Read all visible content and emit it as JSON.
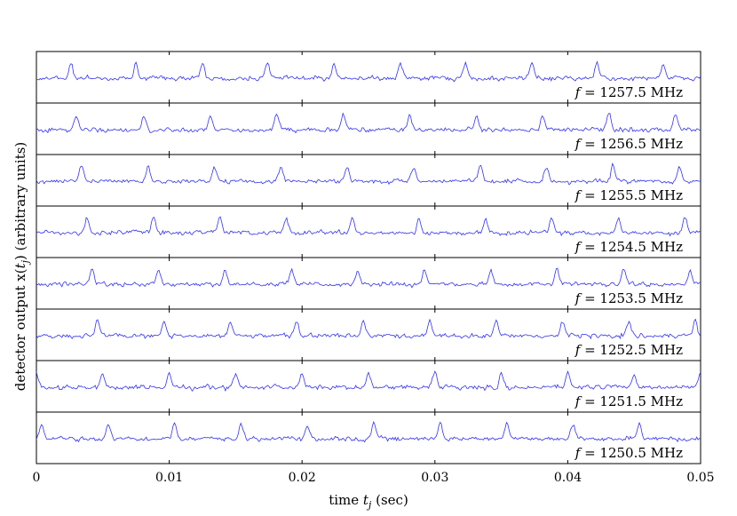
{
  "chart_data": {
    "type": "line",
    "xlabel": "time t_j (sec)",
    "ylabel": "detector output x(t_j) (arbitrary units)",
    "xlim": [
      0,
      0.05
    ],
    "xticks": [
      0,
      0.01,
      0.02,
      0.03,
      0.04,
      0.05
    ],
    "xtick_labels": [
      "0",
      "0.01",
      "0.02",
      "0.03",
      "0.04",
      "0.05"
    ],
    "grid": false,
    "line_color": "#3333ee",
    "panels": [
      {
        "label": "f = 1257.5 MHz",
        "peak_times": [
          0.0026,
          0.0075,
          0.0125,
          0.0174,
          0.0224,
          0.0274,
          0.0323,
          0.0373,
          0.0422,
          0.0472
        ]
      },
      {
        "label": "f = 1256.5 MHz",
        "peak_times": [
          0.003,
          0.0081,
          0.0131,
          0.0181,
          0.0231,
          0.0281,
          0.0331,
          0.0381,
          0.0431,
          0.0481
        ]
      },
      {
        "label": "f = 1255.5 MHz",
        "peak_times": [
          0.0034,
          0.0084,
          0.0134,
          0.0184,
          0.0234,
          0.0284,
          0.0334,
          0.0384,
          0.0434,
          0.0484
        ]
      },
      {
        "label": "f = 1254.5 MHz",
        "peak_times": [
          0.0038,
          0.0088,
          0.0138,
          0.0188,
          0.0238,
          0.0288,
          0.0338,
          0.0388,
          0.0438,
          0.0488
        ]
      },
      {
        "label": "f = 1253.5 MHz",
        "peak_times": [
          0.0042,
          0.0092,
          0.0142,
          0.0192,
          0.0242,
          0.0292,
          0.0342,
          0.0392,
          0.0442,
          0.0492
        ]
      },
      {
        "label": "f = 1252.5 MHz",
        "peak_times": [
          0.0046,
          0.0096,
          0.0146,
          0.0196,
          0.0246,
          0.0296,
          0.0346,
          0.0396,
          0.0446,
          0.0496
        ]
      },
      {
        "label": "f = 1251.5 MHz",
        "peak_times": [
          0.0,
          0.005,
          0.01,
          0.015,
          0.02,
          0.025,
          0.03,
          0.035,
          0.04,
          0.045,
          0.05
        ]
      },
      {
        "label": "f = 1250.5 MHz",
        "peak_times": [
          0.0004,
          0.0054,
          0.0104,
          0.0154,
          0.0204,
          0.0254,
          0.0304,
          0.0354,
          0.0404,
          0.0454
        ]
      }
    ]
  }
}
